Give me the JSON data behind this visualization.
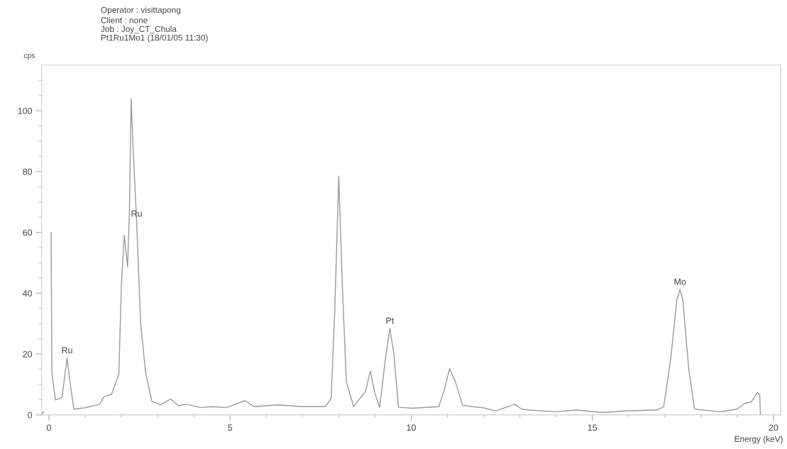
{
  "chart_data": {
    "type": "line",
    "title": "Operator : visittapong",
    "subtitle": "Client : none\nJob : Joy_CT_Chula\nPt1Ru1Mo1 (18/01/05 11:30)",
    "xlabel": "Energy (keV)",
    "ylabel": "cps",
    "series": [
      {
        "color": "#9a9a9a",
        "x": [
          -0.2,
          -0.15,
          -0.03,
          0.0,
          0.06,
          0.08,
          0.18,
          0.36,
          0.5,
          0.6,
          0.69,
          0.99,
          1.4,
          1.52,
          1.73,
          1.93,
          2.0,
          2.08,
          2.17,
          2.22,
          2.27,
          2.32,
          2.42,
          2.53,
          2.67,
          2.84,
          3.08,
          3.36,
          3.57,
          3.78,
          4.2,
          4.49,
          4.9,
          5.41,
          5.67,
          6.32,
          6.98,
          7.63,
          7.79,
          7.89,
          8.0,
          8.1,
          8.21,
          8.41,
          8.74,
          8.87,
          9.0,
          9.13,
          9.29,
          9.41,
          9.52,
          9.65,
          10.04,
          10.76,
          10.92,
          11.06,
          11.22,
          11.42,
          12.0,
          12.33,
          12.86,
          13.05,
          13.25,
          13.97,
          14.56,
          15.27,
          15.93,
          16.78,
          16.97,
          17.17,
          17.33,
          17.42,
          17.5,
          17.66,
          17.82,
          18.54,
          19.0,
          19.2,
          19.39,
          19.56,
          19.62,
          19.64
        ],
        "values": [
          0,
          1,
          null,
          null,
          60,
          13.7,
          4.9,
          5.7,
          18.7,
          9,
          1.9,
          2.3,
          3.5,
          6,
          6.8,
          13.5,
          42.9,
          59,
          48.7,
          66,
          104,
          88.6,
          63.6,
          30.3,
          13.7,
          4.5,
          3.3,
          5.2,
          3.0,
          3.5,
          2.4,
          2.7,
          2.4,
          4.7,
          2.7,
          3.3,
          2.7,
          2.7,
          5.4,
          34.2,
          78.5,
          42,
          10.9,
          2.7,
          7.8,
          14.4,
          7.0,
          2.5,
          18.6,
          28.4,
          20.2,
          2.5,
          2.2,
          2.7,
          8.5,
          15.2,
          10.9,
          3.1,
          2.3,
          1.3,
          3.5,
          1.9,
          1.6,
          1.0,
          1.6,
          0.8,
          1.3,
          1.6,
          2.7,
          19.0,
          37.7,
          41.2,
          37.7,
          15.2,
          1.9,
          1.0,
          1.9,
          3.7,
          4.3,
          7.4,
          6.6,
          0
        ]
      }
    ],
    "annotations": [
      {
        "text": "Ru",
        "x": 0.5,
        "y": 18.7
      },
      {
        "text": "Ru",
        "x": 2.42,
        "y": 63.6
      },
      {
        "text": "Pt",
        "x": 9.41,
        "y": 28.4
      },
      {
        "text": "Mo",
        "x": 17.42,
        "y": 41.2
      }
    ],
    "xlim": [
      -0.2,
      20.2
    ],
    "ylim": [
      0,
      115
    ],
    "xticks": [
      0,
      {
        "value": 1,
        "label": null
      },
      {
        "value": 2,
        "label": null
      },
      {
        "value": 3,
        "label": null
      },
      {
        "value": 4,
        "label": null
      },
      5,
      {
        "value": 6,
        "label": null
      },
      {
        "value": 7,
        "label": null
      },
      {
        "value": 8,
        "label": null
      },
      {
        "value": 9,
        "label": null
      },
      10,
      {
        "value": 11,
        "label": null
      },
      {
        "value": 12,
        "label": null
      },
      {
        "value": 13,
        "label": null
      },
      {
        "value": 14,
        "label": null
      },
      15,
      {
        "value": 16,
        "label": null
      },
      {
        "value": 17,
        "label": null
      },
      {
        "value": 18,
        "label": null
      },
      {
        "value": 19,
        "label": null
      },
      20
    ],
    "yticks": [
      0,
      {
        "value": 5,
        "label": null
      },
      {
        "value": 10,
        "label": null
      },
      {
        "value": 15,
        "label": null
      },
      20,
      {
        "value": 25,
        "label": null
      },
      {
        "value": 30,
        "label": null
      },
      {
        "value": 35,
        "label": null
      },
      40,
      {
        "value": 45,
        "label": null
      },
      {
        "value": 50,
        "label": null
      },
      {
        "value": 55,
        "label": null
      },
      60,
      {
        "value": 65,
        "label": null
      },
      {
        "value": 70,
        "label": null
      },
      {
        "value": 75,
        "label": null
      },
      80,
      {
        "value": 85,
        "label": null
      },
      {
        "value": 90,
        "label": null
      },
      {
        "value": 95,
        "label": null
      },
      100,
      {
        "value": 105,
        "label": null
      },
      {
        "value": 110,
        "label": null
      }
    ],
    "grid": false,
    "legend": false,
    "marker": "none",
    "line_style": "solid"
  }
}
